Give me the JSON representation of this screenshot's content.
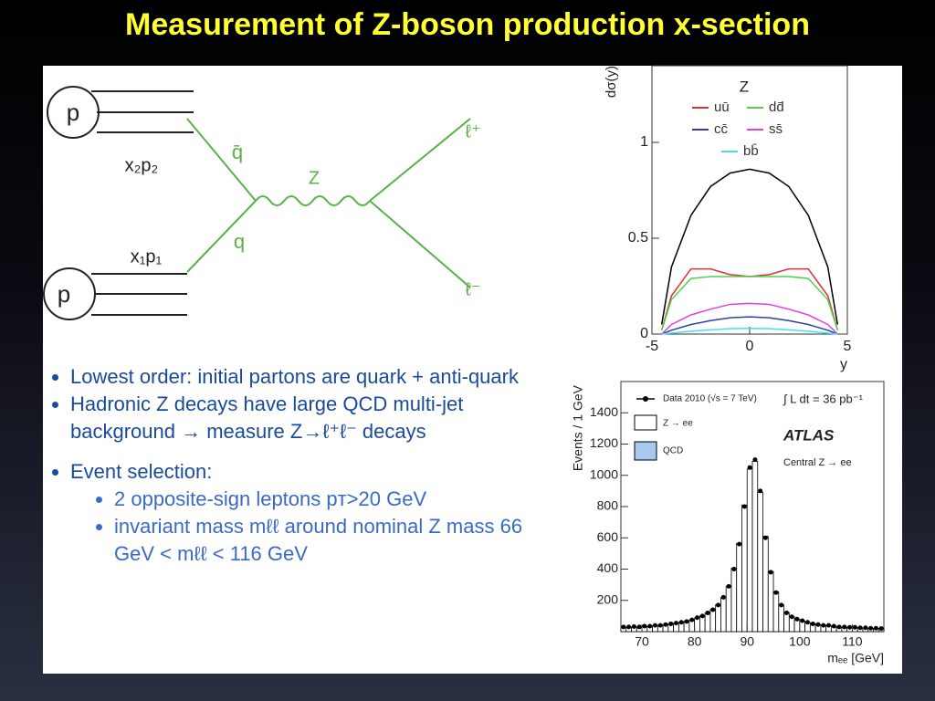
{
  "title": "Measurement of Z-boson production x-section",
  "diagram": {
    "labels": [
      "p",
      "x₂p₂",
      "q̄",
      "Z",
      "ℓ⁺",
      "q",
      "x₁p₁",
      "p",
      "ℓ⁻"
    ]
  },
  "bullets": [
    {
      "text": "Lowest order: initial partons are quark + anti-quark"
    },
    {
      "text": "Hadronic Z decays have large QCD multi-jet background → measure Z→ℓ⁺ℓ⁻ decays"
    },
    {
      "text": "Event selection:",
      "sub": [
        "2 opposite-sign leptons pᴛ>20 GeV",
        "invariant mass mℓℓ around nominal Z mass 66 GeV < mℓℓ < 116 GeV"
      ]
    }
  ],
  "chart_data": [
    {
      "type": "line",
      "ylabel": "dσ(y)",
      "xlabel": "y",
      "legend_title": "Z",
      "x": [
        -4.5,
        -4,
        -3,
        -2,
        -1,
        0,
        1,
        2,
        3,
        4,
        4.5
      ],
      "xlim": [
        -5,
        5
      ],
      "ylim": [
        0,
        1.4
      ],
      "xticks": [
        -5,
        0,
        5
      ],
      "yticks": [
        0,
        0.5,
        1
      ],
      "series": [
        {
          "color": "#000000",
          "values": [
            0.05,
            0.35,
            0.62,
            0.77,
            0.84,
            0.86,
            0.84,
            0.77,
            0.62,
            0.35,
            0.05
          ]
        },
        {
          "name": "uū",
          "color": "#e03030",
          "values": [
            0.02,
            0.2,
            0.34,
            0.34,
            0.31,
            0.3,
            0.31,
            0.34,
            0.34,
            0.2,
            0.02
          ]
        },
        {
          "name": "dd̄",
          "color": "#50d050",
          "values": [
            0.02,
            0.18,
            0.29,
            0.3,
            0.3,
            0.3,
            0.3,
            0.3,
            0.29,
            0.18,
            0.02
          ]
        },
        {
          "name": "cc̄",
          "color": "#3040a0",
          "values": [
            0,
            0.02,
            0.05,
            0.07,
            0.085,
            0.09,
            0.085,
            0.07,
            0.05,
            0.02,
            0
          ]
        },
        {
          "name": "ss̄",
          "color": "#e040e0",
          "values": [
            0,
            0.05,
            0.1,
            0.13,
            0.155,
            0.16,
            0.155,
            0.13,
            0.1,
            0.05,
            0
          ]
        },
        {
          "name": "bb̄",
          "color": "#40e0f0",
          "values": [
            0,
            0.005,
            0.015,
            0.022,
            0.028,
            0.03,
            0.028,
            0.022,
            0.015,
            0.005,
            0
          ]
        }
      ]
    },
    {
      "type": "histogram",
      "ylabel": "Events / 1 GeV",
      "xlabel": "mₑₑ [GeV]",
      "annotations": [
        "∫ L dt = 36 pb⁻¹",
        "ATLAS",
        "Central Z → ee"
      ],
      "bins": [
        66,
        67,
        68,
        69,
        70,
        71,
        72,
        73,
        74,
        75,
        76,
        77,
        78,
        79,
        80,
        81,
        82,
        83,
        84,
        85,
        86,
        87,
        88,
        89,
        90,
        91,
        92,
        93,
        94,
        95,
        96,
        97,
        98,
        99,
        100,
        101,
        102,
        103,
        104,
        105,
        106,
        107,
        108,
        109,
        110,
        111,
        112,
        113,
        114,
        115,
        116
      ],
      "xlim": [
        66,
        116
      ],
      "ylim": [
        0,
        1600
      ],
      "xticks": [
        70,
        80,
        90,
        100,
        110
      ],
      "yticks": [
        200,
        400,
        600,
        800,
        1000,
        1200,
        1400
      ],
      "series": [
        {
          "name": "Data 2010 (√s = 7 TeV)",
          "color": "#000000",
          "values": [
            30,
            30,
            32,
            30,
            35,
            35,
            40,
            40,
            45,
            50,
            55,
            60,
            65,
            75,
            90,
            100,
            120,
            140,
            170,
            220,
            290,
            400,
            560,
            800,
            1050,
            1100,
            900,
            600,
            380,
            250,
            170,
            120,
            95,
            80,
            70,
            60,
            50,
            45,
            40,
            40,
            35,
            30,
            30,
            28,
            28,
            25,
            25,
            22,
            22,
            20
          ]
        },
        {
          "name": "Z → ee",
          "color": "#ffffff",
          "values": [
            28,
            29,
            30,
            31,
            33,
            35,
            38,
            41,
            45,
            49,
            54,
            60,
            66,
            75,
            88,
            102,
            120,
            142,
            172,
            218,
            290,
            405,
            565,
            810,
            1040,
            1090,
            890,
            610,
            385,
            255,
            172,
            122,
            96,
            80,
            68,
            58,
            50,
            45,
            41,
            38,
            34,
            31,
            29,
            27,
            26,
            24,
            23,
            22,
            21,
            20
          ]
        },
        {
          "name": "QCD",
          "color": "#a8c8f0"
        }
      ]
    }
  ]
}
